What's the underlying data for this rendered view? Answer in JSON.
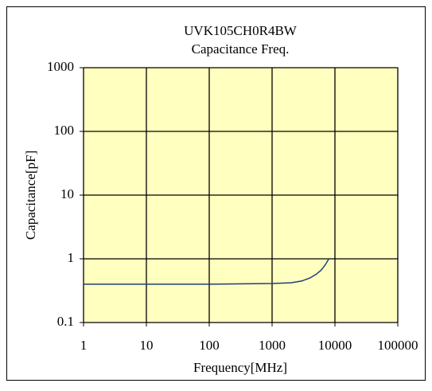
{
  "chart_data": {
    "type": "line",
    "title": "UVK105CH0R4BW",
    "subtitle": "Capacitance Freq.",
    "x_label": "Frequency[MHz]",
    "y_label": "Capacitance[pF]",
    "xscale": "log",
    "yscale": "log",
    "xlim": [
      1,
      100000
    ],
    "ylim": [
      0.1,
      1000
    ],
    "xticks": [
      1,
      10,
      100,
      1000,
      10000,
      100000
    ],
    "yticks": [
      0.1,
      1,
      10,
      100,
      1000
    ],
    "grid": true,
    "plot_background": "#ffffc0",
    "x": [
      1,
      10,
      100,
      1000,
      2000,
      3000,
      4000,
      5000,
      6000,
      7000,
      8000
    ],
    "series": [
      {
        "name": "UVK105CH0R4BW",
        "color": "#1f3f73",
        "values": [
          0.4,
          0.4,
          0.4,
          0.41,
          0.42,
          0.45,
          0.5,
          0.57,
          0.66,
          0.8,
          1.0
        ]
      }
    ]
  }
}
